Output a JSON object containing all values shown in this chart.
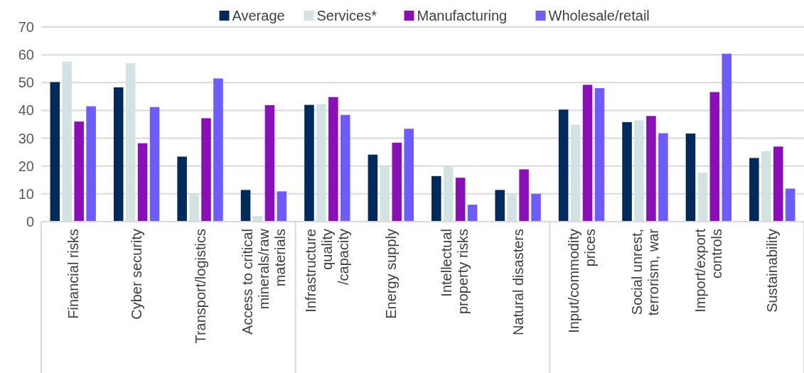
{
  "chart_data": {
    "type": "bar",
    "categories": [
      "Financial risks",
      "Cyber security",
      "Transport/logistics",
      "Access to critical\nminerals/raw\nmaterials",
      "Infrastructure\nquality\n/capacity",
      "Energy supply",
      "Intellectual\nproperty risks",
      "Natural disasters",
      "Input/commodity\nprices",
      "Social unrest,\nterrorism, war",
      "Import/export\ncontrols",
      "Sustainability"
    ],
    "series": [
      {
        "name": "Average",
        "color": "#002a5c",
        "values": [
          50.2,
          48.3,
          23.4,
          11.4,
          42,
          24.1,
          16.4,
          11.4,
          40.3,
          35.8,
          31.7,
          22.9
        ]
      },
      {
        "name": "Services*",
        "color": "#d3e3e3",
        "values": [
          57.5,
          57,
          10,
          2,
          42.3,
          19.8,
          20,
          9.8,
          34.9,
          36.4,
          17.6,
          25.3
        ]
      },
      {
        "name": "Manufacturing",
        "color": "#8b0fb8",
        "values": [
          36,
          28.2,
          37.2,
          41.9,
          44.8,
          28.4,
          15.8,
          18.8,
          49.2,
          38,
          46.6,
          27
        ]
      },
      {
        "name": "Wholesale/retail",
        "color": "#6e5cfa",
        "values": [
          41.5,
          41.2,
          51.5,
          10.9,
          38.4,
          33.4,
          6.1,
          10,
          48,
          31.8,
          60.4,
          11.9
        ]
      }
    ],
    "ylim": [
      0,
      70
    ],
    "yticks": [
      0,
      10,
      20,
      30,
      40,
      50,
      60,
      70
    ],
    "grid": "y",
    "legend": "top"
  }
}
